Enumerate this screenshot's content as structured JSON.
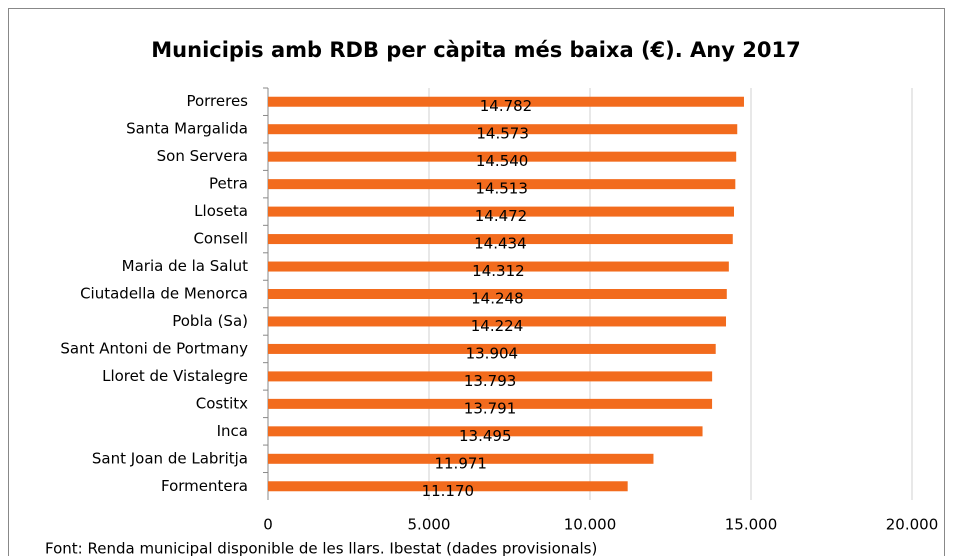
{
  "chart_data": {
    "type": "bar",
    "orientation": "horizontal",
    "title": "Municipis amb RDB per càpita més baixa (€). Any 2017",
    "categories": [
      "Porreres",
      "Santa Margalida",
      "Son Servera",
      "Petra",
      "Lloseta",
      "Consell",
      "Maria de la Salut",
      "Ciutadella de Menorca",
      "Pobla (Sa)",
      "Sant Antoni de Portmany",
      "Lloret de Vistalegre",
      "Costitx",
      "Inca",
      "Sant Joan de Labritja",
      "Formentera"
    ],
    "values": [
      14782,
      14573,
      14540,
      14513,
      14472,
      14434,
      14312,
      14248,
      14224,
      13904,
      13793,
      13791,
      13495,
      11971,
      11170
    ],
    "value_labels": [
      "14.782",
      "14.573",
      "14.540",
      "14.513",
      "14.472",
      "14.434",
      "14.312",
      "14.248",
      "14.224",
      "13.904",
      "13.793",
      "13.791",
      "13.495",
      "11.971",
      "11.170"
    ],
    "color": "#f26b1d",
    "xlim": [
      0,
      20000
    ],
    "xticks": [
      0,
      {
        "value": 5000,
        "label": "5.000"
      },
      {
        "value": 10000,
        "label": "10.000"
      },
      {
        "value": 15000,
        "label": "15.000"
      },
      {
        "value": 20000,
        "label": "20.000"
      }
    ],
    "grid": true,
    "source": "Font: Renda municipal disponible de les llars. Ibestat (dades provisionals)"
  }
}
